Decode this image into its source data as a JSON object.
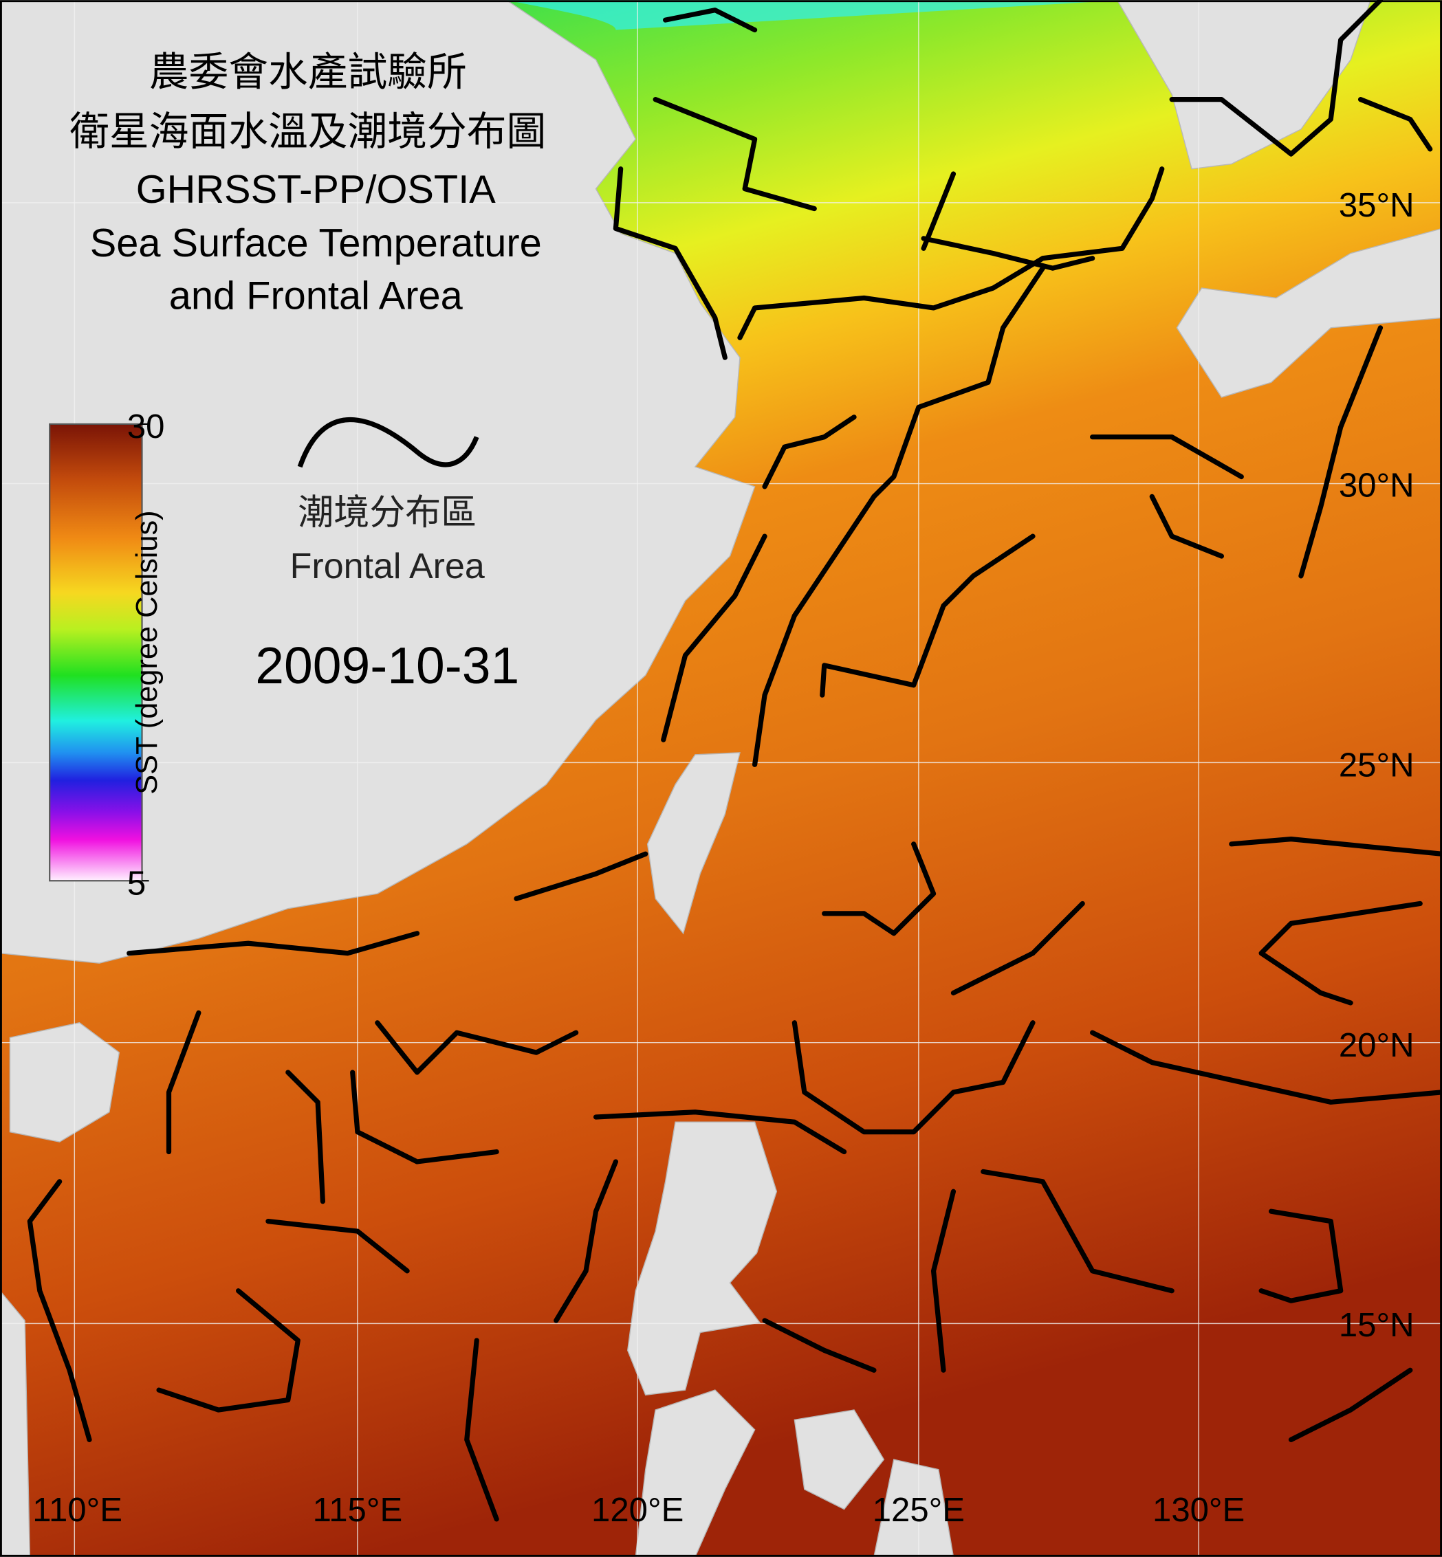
{
  "header": {
    "org": "農委會水產試驗所",
    "title_zh": "衛星海面水溫及潮境分布圖",
    "product": "GHRSST-PP/OSTIA",
    "title_en_1": "Sea Surface Temperature",
    "title_en_2": "and Frontal Area"
  },
  "legend": {
    "label_zh": "潮境分布區",
    "label_en": "Frontal Area"
  },
  "date": "2009-10-31",
  "colorbar": {
    "label": "SST (degree Celsius)",
    "range": [
      5,
      30
    ],
    "ticks": [
      5,
      30
    ]
  },
  "latitude_labels": [
    "35°N",
    "30°N",
    "25°N",
    "20°N",
    "15°N"
  ],
  "longitude_labels": [
    "110°E",
    "115°E",
    "120°E",
    "125°E",
    "130°E"
  ]
}
